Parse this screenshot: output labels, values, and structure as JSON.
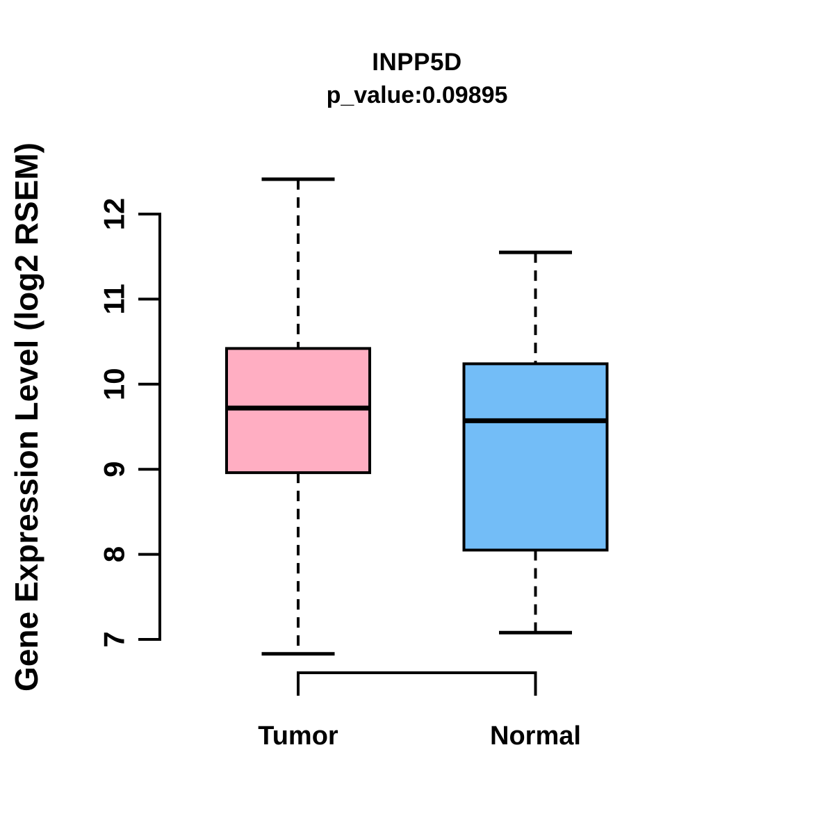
{
  "chart_data": {
    "type": "box",
    "title": "INPP5D",
    "subtitle": "p_value:0.09895",
    "ylabel": "Gene Expression Level (log2 RSEM)",
    "xlabel": "",
    "yticks": [
      7,
      8,
      9,
      10,
      11,
      12
    ],
    "ylim": [
      6.7,
      12.55
    ],
    "grid": false,
    "legend": "none",
    "categories": [
      "Tumor",
      "Normal"
    ],
    "groups": [
      {
        "label": "Tumor",
        "fill": "#FFAEC2",
        "whisker_low": 6.83,
        "q1": 8.96,
        "median": 9.72,
        "q3": 10.42,
        "whisker_high": 12.41,
        "outliers": []
      },
      {
        "label": "Normal",
        "fill": "#73BDF7",
        "whisker_low": 7.08,
        "q1": 8.05,
        "median": 9.57,
        "q3": 10.24,
        "whisker_high": 11.55,
        "outliers": []
      }
    ],
    "colors": {
      "background": "#FFFFFF",
      "box_border": "#000000",
      "median": "#000000",
      "axis": "#000000",
      "text": "#000000"
    }
  }
}
